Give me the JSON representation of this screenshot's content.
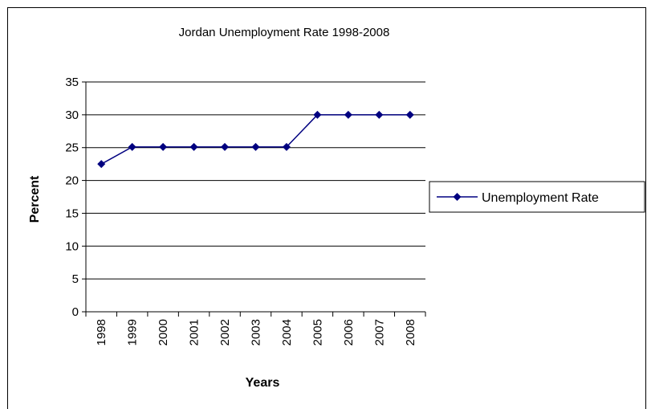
{
  "chart_data": {
    "type": "line",
    "title": "Jordan Unemployment Rate 1998-2008",
    "xlabel": "Years",
    "ylabel": "Percent",
    "categories": [
      "1998",
      "1999",
      "2000",
      "2001",
      "2002",
      "2003",
      "2004",
      "2005",
      "2006",
      "2007",
      "2008"
    ],
    "series": [
      {
        "name": "Unemployment Rate",
        "values": [
          22.5,
          25.1,
          25.1,
          25.1,
          25.1,
          25.1,
          25.1,
          30,
          30,
          30,
          30
        ]
      }
    ],
    "ylim": [
      0,
      35
    ],
    "yticks": [
      0,
      5,
      10,
      15,
      20,
      25,
      30,
      35
    ],
    "grid": true,
    "legend": "right",
    "line_color": "#000080"
  }
}
